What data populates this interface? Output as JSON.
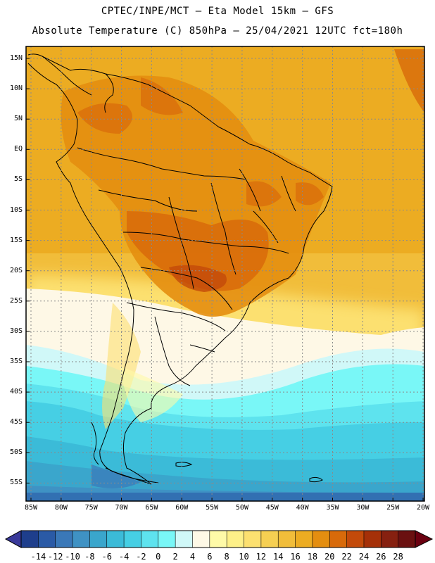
{
  "header": {
    "line1": "CPTEC/INPE/MCT –  Eta Model 15km – GFS",
    "line2": "Absolute Temperature (C) 850hPa – 25/04/2021 12UTC fct=180h"
  },
  "map": {
    "lat_labels": [
      "15N",
      "10N",
      "5N",
      "EQ",
      "5S",
      "10S",
      "15S",
      "20S",
      "25S",
      "30S",
      "35S",
      "40S",
      "45S",
      "50S",
      "55S"
    ],
    "lon_labels": [
      "85W",
      "80W",
      "75W",
      "70W",
      "65W",
      "60W",
      "55W",
      "50W",
      "45W",
      "40W",
      "35W",
      "30W",
      "25W",
      "20W"
    ]
  },
  "colorbar": {
    "labels": [
      "-14",
      "-12",
      "-10",
      "-8",
      "-6",
      "-4",
      "-2",
      "0",
      "2",
      "4",
      "6",
      "8",
      "10",
      "12",
      "14",
      "16",
      "18",
      "20",
      "22",
      "24",
      "26",
      "28"
    ],
    "colors": [
      "#1e3e8c",
      "#2a5aa6",
      "#3a78b8",
      "#3f92c4",
      "#3aa6cc",
      "#3bbbd8",
      "#46cfe4",
      "#5ee3ee",
      "#79f7f7",
      "#d0f8f8",
      "#fef8e6",
      "#fefaa8",
      "#fdf088",
      "#fce070",
      "#f6cf52",
      "#f1bd3a",
      "#ecac22",
      "#e48e10",
      "#d86a0a",
      "#c34a0a",
      "#a53008",
      "#862010",
      "#6a1010"
    ],
    "min_color": "#3a3a9a",
    "max_color": "#6a0010"
  }
}
